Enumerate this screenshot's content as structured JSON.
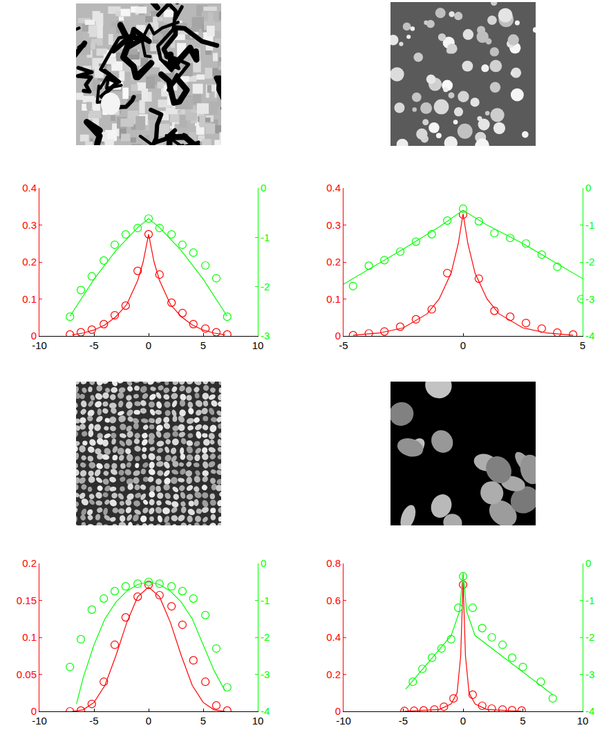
{
  "chart_data": [
    {
      "type": "scatter",
      "grid": false,
      "xlim": [
        -10,
        10
      ],
      "xticks": [
        -10,
        -5,
        0,
        5,
        10
      ],
      "ylim": [
        0,
        0.4
      ],
      "yticks": [
        0,
        0.1,
        0.2,
        0.3,
        0.4
      ],
      "y2lim": [
        -3,
        0
      ],
      "y2ticks": [
        -3,
        -2,
        -1,
        0
      ],
      "series": [
        {
          "type": "scatter",
          "color": "#ff0000",
          "marker": "circle",
          "x": [
            -7.2,
            -6.2,
            -5.2,
            -4.1,
            -3.1,
            -2.1,
            -1.0,
            0,
            1.0,
            2.1,
            3.1,
            4.1,
            5.2,
            6.2,
            7.2
          ],
          "values": [
            0.004,
            0.01,
            0.017,
            0.032,
            0.056,
            0.082,
            0.176,
            0.275,
            0.166,
            0.09,
            0.062,
            0.032,
            0.02,
            0.01,
            0.004
          ]
        },
        {
          "type": "line",
          "color": "#ff0000",
          "line_style": "solid",
          "x": [
            -7,
            -6,
            -5,
            -4,
            -3,
            -2,
            -1,
            -0.5,
            0,
            0.5,
            1,
            2,
            3,
            4,
            5,
            6,
            7
          ],
          "values": [
            0.003,
            0.008,
            0.016,
            0.03,
            0.052,
            0.085,
            0.15,
            0.2,
            0.275,
            0.2,
            0.15,
            0.085,
            0.052,
            0.03,
            0.016,
            0.008,
            0.003
          ]
        },
        {
          "type": "scatter",
          "color": "#00ff00",
          "marker": "circle",
          "axis": "y2",
          "x": [
            -7.2,
            -6.2,
            -5.2,
            -4.1,
            -3.1,
            -2.1,
            -1.0,
            0,
            1.0,
            2.1,
            3.1,
            4.1,
            5.2,
            6.2,
            7.2
          ],
          "values": [
            -2.61,
            -2.07,
            -1.79,
            -1.47,
            -1.15,
            -0.94,
            -0.81,
            -0.62,
            -0.81,
            -0.94,
            -1.15,
            -1.31,
            -1.57,
            -1.83,
            -2.61
          ]
        },
        {
          "type": "line",
          "color": "#00ff00",
          "line_style": "solid",
          "axis": "y2",
          "x": [
            -7.2,
            -5,
            -3,
            -1,
            0,
            1,
            3,
            5,
            7.2
          ],
          "values": [
            -2.6,
            -1.85,
            -1.27,
            -0.8,
            -0.62,
            -0.8,
            -1.27,
            -1.85,
            -2.6
          ]
        }
      ]
    },
    {
      "type": "scatter",
      "grid": false,
      "xlim": [
        -5,
        5
      ],
      "xticks": [
        -5,
        0,
        5
      ],
      "ylim": [
        0,
        0.4
      ],
      "yticks": [
        0,
        0.1,
        0.2,
        0.3,
        0.4
      ],
      "y2lim": [
        -4,
        0
      ],
      "y2ticks": [
        -4,
        -3,
        -2,
        -1,
        0
      ],
      "series": [
        {
          "type": "scatter",
          "color": "#ff0000",
          "marker": "circle",
          "x": [
            -4.6,
            -3.94,
            -3.29,
            -2.63,
            -1.97,
            -1.31,
            -0.66,
            0,
            0.66,
            1.31,
            1.97,
            2.63,
            3.29,
            3.94,
            4.6
          ],
          "values": [
            0.002,
            0.007,
            0.012,
            0.025,
            0.045,
            0.072,
            0.17,
            0.328,
            0.155,
            0.068,
            0.052,
            0.035,
            0.02,
            0.009,
            0.004
          ]
        },
        {
          "type": "line",
          "color": "#ff0000",
          "line_style": "solid",
          "x": [
            -4.6,
            -3.5,
            -2.5,
            -1.5,
            -1,
            -0.5,
            -0.2,
            0,
            0.2,
            0.5,
            1,
            1.5,
            2.5,
            3.5,
            4.6
          ],
          "values": [
            0.002,
            0.008,
            0.022,
            0.06,
            0.1,
            0.17,
            0.25,
            0.33,
            0.25,
            0.17,
            0.1,
            0.06,
            0.022,
            0.008,
            0.002
          ]
        },
        {
          "type": "scatter",
          "color": "#00ff00",
          "marker": "circle",
          "axis": "y2",
          "x": [
            -4.6,
            -3.94,
            -3.29,
            -2.63,
            -1.97,
            -1.31,
            -0.66,
            0,
            0.66,
            1.31,
            1.97,
            2.63,
            3.29,
            3.94,
            4.95
          ],
          "values": [
            -2.65,
            -2.1,
            -1.95,
            -1.72,
            -1.45,
            -1.25,
            -0.88,
            -0.56,
            -0.9,
            -1.22,
            -1.35,
            -1.5,
            -1.8,
            -2.13,
            -3.0
          ]
        },
        {
          "type": "line",
          "color": "#00ff00",
          "line_style": "solid",
          "axis": "y2",
          "x": [
            -5,
            -2.5,
            -1,
            0,
            1,
            2.5,
            5
          ],
          "values": [
            -2.6,
            -1.65,
            -1.05,
            -0.6,
            -1.0,
            -1.5,
            -2.45
          ]
        }
      ]
    },
    {
      "type": "scatter",
      "grid": false,
      "xlim": [
        -10,
        10
      ],
      "xticks": [
        -10,
        -5,
        0,
        5,
        10
      ],
      "ylim": [
        0,
        0.2
      ],
      "yticks": [
        0,
        0.05,
        0.1,
        0.15,
        0.2
      ],
      "y2lim": [
        -4,
        0
      ],
      "y2ticks": [
        -4,
        -3,
        -2,
        -1,
        0
      ],
      "series": [
        {
          "type": "scatter",
          "color": "#ff0000",
          "marker": "circle",
          "x": [
            -7.2,
            -6.2,
            -5.2,
            -4.1,
            -3.1,
            -2.1,
            -1.0,
            0,
            1.0,
            2.1,
            3.1,
            4.1,
            5.2,
            6.2,
            7.2
          ],
          "values": [
            0,
            0.001,
            0.01,
            0.04,
            0.09,
            0.127,
            0.155,
            0.171,
            0.157,
            0.142,
            0.117,
            0.069,
            0.04,
            0.008,
            0.001
          ]
        },
        {
          "type": "line",
          "color": "#ff0000",
          "line_style": "solid",
          "x": [
            -7,
            -6,
            -5,
            -4,
            -3,
            -2,
            -1,
            0,
            1,
            2,
            3,
            4,
            5,
            6,
            7
          ],
          "values": [
            0,
            0.002,
            0.012,
            0.035,
            0.075,
            0.12,
            0.155,
            0.168,
            0.155,
            0.12,
            0.075,
            0.035,
            0.012,
            0.002,
            0
          ]
        },
        {
          "type": "scatter",
          "color": "#00ff00",
          "marker": "circle",
          "axis": "y2",
          "x": [
            -7.2,
            -6.2,
            -5.2,
            -4.1,
            -3.1,
            -2.1,
            -1.0,
            0,
            1.0,
            2.1,
            3.1,
            4.1,
            5.2,
            6.2,
            7.2
          ],
          "values": [
            -2.8,
            -2.05,
            -1.25,
            -0.95,
            -0.75,
            -0.62,
            -0.55,
            -0.5,
            -0.55,
            -0.62,
            -0.75,
            -0.95,
            -1.4,
            -2.3,
            -3.35
          ]
        },
        {
          "type": "line",
          "color": "#00ff00",
          "line_style": "solid",
          "axis": "y2",
          "x": [
            -6.6,
            -6,
            -5,
            -4,
            -3,
            -2,
            -1,
            0,
            1,
            2,
            3,
            4,
            5,
            6,
            7
          ],
          "values": [
            -3.8,
            -3.1,
            -2.2,
            -1.5,
            -1.05,
            -0.75,
            -0.57,
            -0.5,
            -0.57,
            -0.75,
            -1.05,
            -1.5,
            -2.2,
            -2.9,
            -3.45
          ]
        }
      ]
    },
    {
      "type": "scatter",
      "grid": false,
      "xlim": [
        -10,
        10
      ],
      "xticks": [
        -10,
        -5,
        0,
        5,
        10
      ],
      "ylim": [
        0,
        0.8
      ],
      "yticks": [
        0,
        0.2,
        0.4,
        0.6,
        0.8
      ],
      "y2lim": [
        -4,
        0
      ],
      "y2ticks": [
        -4,
        -3,
        -2,
        -1,
        0
      ],
      "series": [
        {
          "type": "scatter",
          "color": "#ff0000",
          "marker": "circle",
          "x": [
            -4.9,
            -4.1,
            -3.3,
            -2.4,
            -1.6,
            -0.8,
            0,
            0.8,
            1.6,
            2.4,
            3.3,
            4.1,
            4.9
          ],
          "values": [
            0.002,
            0.003,
            0.005,
            0.01,
            0.025,
            0.07,
            0.685,
            0.09,
            0.03,
            0.015,
            0.01,
            0.006,
            0.004
          ]
        },
        {
          "type": "line",
          "color": "#ff0000",
          "line_style": "solid",
          "x": [
            -4.9,
            -2,
            -1,
            -0.5,
            -0.2,
            0,
            0.2,
            0.5,
            1,
            2,
            4.9
          ],
          "values": [
            0.001,
            0.01,
            0.04,
            0.1,
            0.3,
            0.7,
            0.3,
            0.1,
            0.04,
            0.01,
            0.001
          ]
        },
        {
          "type": "scatter",
          "color": "#00ff00",
          "marker": "circle",
          "axis": "y2",
          "x": [
            -4.2,
            -3.4,
            -2.6,
            -1.8,
            -1.0,
            -0.4,
            0,
            0.8,
            1.6,
            2.4,
            3.3,
            4.1,
            5.0,
            6.5,
            7.5
          ],
          "values": [
            -3.2,
            -2.85,
            -2.55,
            -2.3,
            -2.05,
            -1.2,
            -0.35,
            -1.2,
            -1.75,
            -2.0,
            -2.2,
            -2.55,
            -2.8,
            -3.2,
            -3.65
          ]
        },
        {
          "type": "line",
          "color": "#00ff00",
          "line_style": "solid",
          "axis": "y2",
          "x": [
            -4.8,
            -1,
            -0.3,
            0,
            0.3,
            1,
            7.5
          ],
          "values": [
            -3.4,
            -1.95,
            -1.3,
            -0.25,
            -1.3,
            -1.95,
            -3.55
          ]
        }
      ]
    }
  ]
}
